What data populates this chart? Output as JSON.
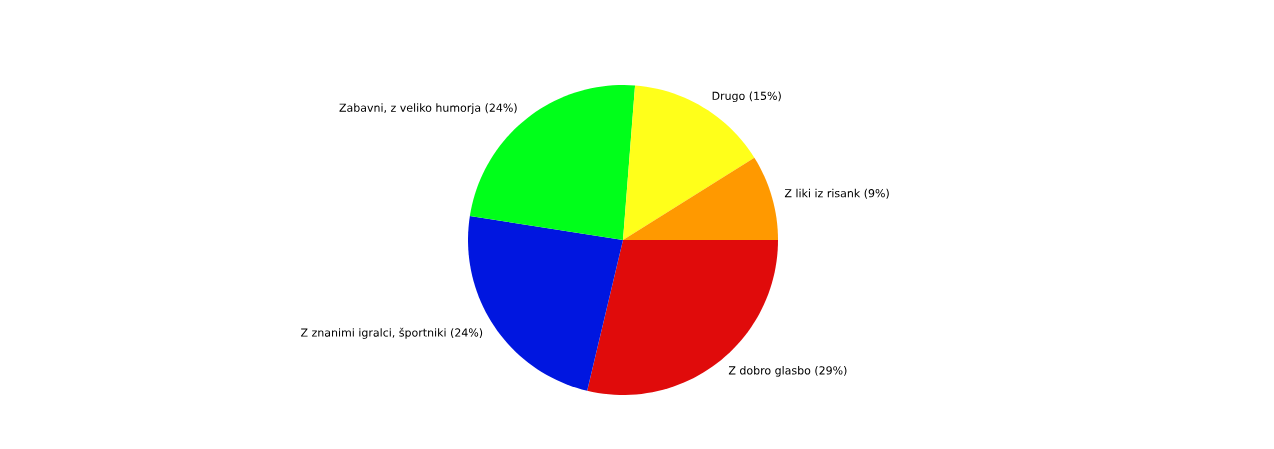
{
  "chart_data": {
    "type": "pie",
    "categories": [
      "Z dobro glasbo (29%)",
      "Z znanimi igralci, športniki (24%)",
      "Zabavni, z veliko humorja (24%)",
      "Drugo (15%)",
      "Z liki iz risank (9%)"
    ],
    "values": [
      29,
      24,
      24,
      15,
      9
    ],
    "colors": [
      "#e00b0b",
      "#0016e0",
      "#00ff1a",
      "#ffff1a",
      "#ff9900"
    ]
  }
}
